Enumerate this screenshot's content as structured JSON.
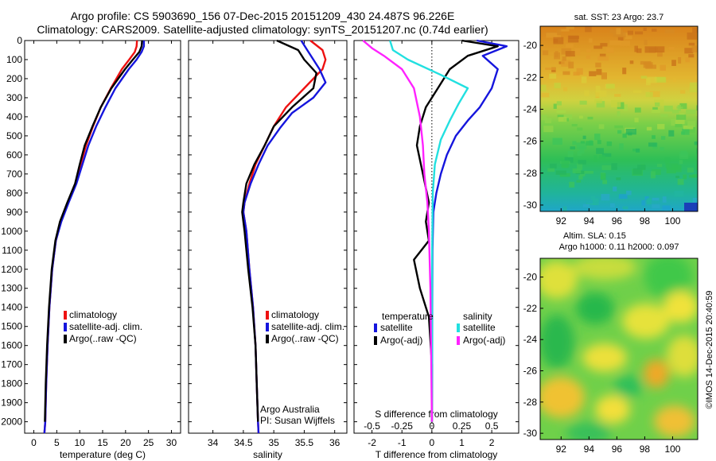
{
  "header": {
    "line1": "Argo profile: CS 5903690_156 07-Dec-2015 20151209_430 24.487S 96.226E",
    "line2": "Climatology: CARS2009. Satellite-adjusted climatology: synTS_20151207.nc (0.74d earlier)"
  },
  "colors": {
    "climatology": "#ee1111",
    "satellite": "#1515dd",
    "argo": "#000000",
    "sat_salinity": "#22e0e0",
    "argo_salinity": "#ff22ff"
  },
  "chart_data": [
    {
      "type": "line",
      "name": "temperature-panel",
      "xlabel": "temperature (deg C)",
      "ylabel": "",
      "xlim": [
        -2,
        32
      ],
      "ylim": [
        2060,
        0
      ],
      "xticks": [
        0,
        5,
        10,
        15,
        20,
        25,
        30
      ],
      "yticks": [
        0,
        100,
        200,
        300,
        400,
        500,
        600,
        700,
        800,
        900,
        1000,
        1100,
        1200,
        1300,
        1400,
        1500,
        1600,
        1700,
        1800,
        1900,
        2000
      ],
      "legend": [
        "climatology",
        "satellite-adj. clim.",
        "Argo(..raw -QC)"
      ],
      "series": [
        {
          "name": "climatology",
          "color": "#ee1111",
          "x": [
            22.5,
            22.4,
            22.0,
            20.8,
            19.2,
            16.8,
            14.6,
            12.9,
            11.4,
            10.2,
            9.2,
            7.5,
            5.9,
            4.8,
            4.0,
            3.4,
            3.0,
            2.7,
            2.5,
            2.3
          ],
          "y": [
            0,
            30,
            60,
            100,
            150,
            250,
            350,
            450,
            550,
            650,
            750,
            850,
            950,
            1050,
            1200,
            1400,
            1600,
            1800,
            2000,
            2060
          ]
        },
        {
          "name": "satellite-adj. clim.",
          "color": "#1515dd",
          "x": [
            24.0,
            24.0,
            23.5,
            22.4,
            20.7,
            17.8,
            15.6,
            13.6,
            11.9,
            10.6,
            9.3,
            7.6,
            6.0,
            4.8,
            4.0,
            3.4,
            3.0,
            2.7,
            2.5,
            2.3
          ],
          "y": [
            0,
            30,
            60,
            100,
            150,
            250,
            350,
            450,
            550,
            650,
            750,
            850,
            950,
            1050,
            1200,
            1400,
            1600,
            1800,
            2000,
            2060
          ]
        },
        {
          "name": "Argo(..raw -QC)",
          "color": "#000000",
          "x": [
            23.6,
            23.5,
            23.0,
            21.6,
            19.9,
            16.9,
            14.6,
            12.8,
            11.1,
            10.0,
            9.0,
            7.3,
            5.7,
            4.7,
            3.9,
            3.3,
            2.9,
            2.6,
            2.4
          ],
          "y": [
            0,
            30,
            60,
            100,
            150,
            250,
            350,
            450,
            550,
            650,
            750,
            850,
            950,
            1050,
            1200,
            1400,
            1600,
            1800,
            2000
          ]
        }
      ]
    },
    {
      "type": "line",
      "name": "salinity-panel",
      "xlabel": "salinity",
      "ylabel": "",
      "xlim": [
        33.6,
        36.2
      ],
      "ylim": [
        2060,
        0
      ],
      "xticks": [
        34,
        34.5,
        35,
        35.5,
        36
      ],
      "legend": [
        "climatology",
        "satellite-adj. clim.",
        "Argo(..raw -QC)"
      ],
      "annotation": [
        "Argo Australia",
        "PI: Susan Wijffels"
      ],
      "series": [
        {
          "name": "climatology",
          "color": "#ee1111",
          "x": [
            35.6,
            35.8,
            35.85,
            35.8,
            35.5,
            35.2,
            35.0,
            34.85,
            34.7,
            34.6,
            34.52,
            34.5,
            34.55,
            34.6,
            34.66,
            34.7,
            34.72,
            34.73,
            34.74,
            34.75
          ],
          "y": [
            0,
            50,
            100,
            150,
            250,
            350,
            450,
            550,
            650,
            750,
            850,
            900,
            1000,
            1200,
            1400,
            1600,
            1800,
            1900,
            2000,
            2060
          ]
        },
        {
          "name": "satellite-adj. clim.",
          "color": "#1515dd",
          "x": [
            35.45,
            35.55,
            35.75,
            35.85,
            35.65,
            35.3,
            35.1,
            34.9,
            34.75,
            34.62,
            34.52,
            34.5,
            34.55,
            34.6,
            34.66,
            34.7,
            34.72,
            34.73,
            34.74,
            34.75
          ],
          "y": [
            0,
            50,
            150,
            220,
            300,
            380,
            460,
            550,
            650,
            750,
            850,
            900,
            1000,
            1200,
            1400,
            1600,
            1800,
            1900,
            2000,
            2060
          ]
        },
        {
          "name": "Argo(..raw -QC)",
          "color": "#000000",
          "x": [
            35.05,
            35.4,
            35.5,
            35.7,
            35.65,
            35.3,
            35.0,
            34.85,
            34.68,
            34.55,
            34.5,
            34.48,
            34.52,
            34.58,
            34.65,
            34.7,
            34.72,
            34.73,
            34.74
          ],
          "y": [
            0,
            50,
            100,
            170,
            250,
            350,
            450,
            550,
            650,
            750,
            850,
            900,
            1000,
            1200,
            1400,
            1600,
            1800,
            1900,
            2000
          ]
        }
      ]
    },
    {
      "type": "line",
      "name": "difference-panel",
      "xlabel": "T difference from climatology",
      "xlabel_top": "S difference from climatology",
      "xlim": [
        -2.6,
        2.9
      ],
      "ylim": [
        2060,
        0
      ],
      "xticks": [
        -2,
        -1,
        0,
        1,
        2
      ],
      "xticks_salinity": [
        -0.5,
        -0.25,
        0,
        0.25,
        0.5
      ],
      "legend_titles": [
        "temperature",
        "salinity"
      ],
      "legend": [
        "satellite",
        "Argo(-adj)",
        "satellite",
        "Argo(-adj)"
      ],
      "series": [
        {
          "name": "temperature satellite",
          "color": "#1515dd",
          "x": [
            1.5,
            2.5,
            1.7,
            2.2,
            2.0,
            1.6,
            1.2,
            0.8,
            0.5,
            0.3,
            0.15,
            0.05,
            0.02,
            0.01,
            0.0
          ],
          "y": [
            0,
            30,
            80,
            150,
            250,
            350,
            420,
            500,
            600,
            700,
            800,
            900,
            1100,
            1500,
            2000
          ]
        },
        {
          "name": "temperature Argo(-adj)",
          "color": "#000000",
          "x": [
            1.0,
            2.2,
            1.2,
            0.6,
            0.2,
            -0.2,
            -0.4,
            -0.5,
            -0.3,
            -0.1,
            -0.2,
            -0.1,
            -0.6,
            -0.4,
            -0.1,
            0.0,
            0.0
          ],
          "y": [
            0,
            30,
            80,
            150,
            250,
            350,
            450,
            550,
            700,
            850,
            950,
            1050,
            1150,
            1300,
            1450,
            1700,
            2000
          ]
        },
        {
          "name": "salinity satellite",
          "color": "#22e0e0",
          "x": [
            -1.4,
            -1.3,
            -0.8,
            0.3,
            1.2,
            0.9,
            0.6,
            0.3,
            0.1,
            0.03,
            0.01,
            0.0
          ],
          "y": [
            0,
            50,
            100,
            180,
            250,
            330,
            420,
            520,
            650,
            800,
            1100,
            2000
          ]
        },
        {
          "name": "salinity Argo(-adj)",
          "color": "#ff22ff",
          "x": [
            -2.3,
            -2.0,
            -1.6,
            -1.0,
            -0.6,
            -0.4,
            -0.3,
            -0.25,
            -0.15,
            -0.1,
            -0.05,
            0.0
          ],
          "y": [
            0,
            40,
            80,
            150,
            250,
            400,
            550,
            700,
            850,
            1000,
            1300,
            2000
          ]
        }
      ]
    },
    {
      "type": "heatmap",
      "name": "sst-map",
      "title": "sat. SST: 23 Argo: 23.7",
      "xlim": [
        90.5,
        101.8
      ],
      "ylim": [
        -30.4,
        -18.8
      ],
      "xticks": [
        92,
        94,
        96,
        98,
        100
      ],
      "yticks": [
        -20,
        -22,
        -24,
        -26,
        -28,
        -30
      ]
    },
    {
      "type": "heatmap",
      "name": "sla-map",
      "title": "Altim. SLA: 0.15",
      "subtitle": "Argo h1000: 0.11 h2000: 0.097",
      "xlim": [
        90.5,
        101.8
      ],
      "ylim": [
        -30.4,
        -18.8
      ],
      "xticks": [
        92,
        94,
        96,
        98,
        100
      ],
      "yticks": [
        -20,
        -22,
        -24,
        -26,
        -28,
        -30
      ]
    }
  ],
  "credit": "©IMOS 14-Dec-2015 20:40:59"
}
